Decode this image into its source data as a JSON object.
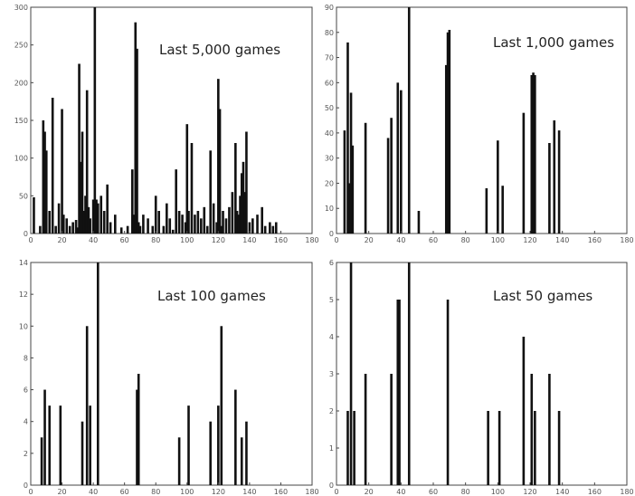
{
  "chart_data": [
    {
      "type": "bar",
      "title": "Last 5,000 games",
      "xlim": [
        0,
        180
      ],
      "ylim": [
        0,
        300
      ],
      "xticks": [
        0,
        20,
        40,
        60,
        80,
        100,
        120,
        140,
        160,
        180
      ],
      "yticks": [
        0,
        50,
        100,
        150,
        200,
        250,
        300
      ],
      "grid": false,
      "x": [
        2,
        6,
        8,
        9,
        10,
        12,
        14,
        16,
        18,
        20,
        21,
        23,
        25,
        27,
        29,
        30,
        31,
        32,
        33,
        34,
        35,
        36,
        37,
        38,
        40,
        41,
        42,
        43,
        45,
        47,
        49,
        51,
        54,
        58,
        62,
        65,
        66,
        67,
        68,
        69,
        70,
        72,
        75,
        78,
        80,
        82,
        85,
        87,
        89,
        91,
        93,
        95,
        97,
        99,
        100,
        101,
        103,
        105,
        107,
        109,
        111,
        113,
        115,
        117,
        119,
        120,
        121,
        122,
        123,
        125,
        127,
        129,
        131,
        132,
        133,
        134,
        135,
        136,
        137,
        138,
        140,
        142,
        145,
        148,
        150,
        153,
        155,
        157
      ],
      "values": [
        48,
        10,
        150,
        135,
        110,
        30,
        180,
        10,
        40,
        165,
        25,
        20,
        10,
        15,
        18,
        8,
        225,
        95,
        135,
        30,
        50,
        190,
        35,
        20,
        45,
        300,
        45,
        40,
        50,
        30,
        65,
        15,
        25,
        8,
        10,
        85,
        25,
        280,
        245,
        15,
        10,
        25,
        20,
        10,
        50,
        30,
        10,
        40,
        20,
        5,
        85,
        30,
        25,
        15,
        145,
        30,
        120,
        25,
        30,
        20,
        35,
        10,
        110,
        40,
        15,
        205,
        165,
        10,
        30,
        20,
        35,
        55,
        120,
        30,
        25,
        50,
        80,
        95,
        55,
        135,
        15,
        20,
        25,
        35,
        10,
        15,
        10,
        15
      ]
    },
    {
      "type": "bar",
      "title": "Last 1,000 games",
      "xlim": [
        0,
        180
      ],
      "ylim": [
        0,
        90
      ],
      "xticks": [
        0,
        20,
        40,
        60,
        80,
        100,
        120,
        140,
        160,
        180
      ],
      "yticks": [
        0,
        10,
        20,
        30,
        40,
        50,
        60,
        70,
        80,
        90
      ],
      "grid": false,
      "x": [
        5,
        7,
        8,
        9,
        10,
        18,
        32,
        34,
        38,
        40,
        45,
        51,
        68,
        69,
        70,
        93,
        100,
        103,
        116,
        121,
        122,
        123,
        132,
        135,
        138
      ],
      "values": [
        41,
        76,
        20,
        56,
        35,
        44,
        38,
        46,
        60,
        57,
        90,
        9,
        67,
        80,
        81,
        18,
        37,
        19,
        48,
        63,
        64,
        63,
        36,
        45,
        41
      ]
    },
    {
      "type": "bar",
      "title": "Last 100 games",
      "xlim": [
        0,
        180
      ],
      "ylim": [
        0,
        14
      ],
      "xticks": [
        0,
        20,
        40,
        60,
        80,
        100,
        120,
        140,
        160,
        180
      ],
      "yticks": [
        0,
        2,
        4,
        6,
        8,
        10,
        12,
        14
      ],
      "grid": false,
      "x": [
        7,
        9,
        12,
        19,
        33,
        36,
        38,
        43,
        68,
        69,
        95,
        101,
        115,
        120,
        122,
        131,
        135,
        138
      ],
      "values": [
        3,
        6,
        5,
        5,
        4,
        10,
        5,
        14,
        6,
        7,
        3,
        5,
        4,
        5,
        10,
        6,
        3,
        4
      ]
    },
    {
      "type": "bar",
      "title": "Last 50 games",
      "xlim": [
        0,
        180
      ],
      "ylim": [
        0,
        6
      ],
      "xticks": [
        0,
        20,
        40,
        60,
        80,
        100,
        120,
        140,
        160,
        180
      ],
      "yticks": [
        0,
        1,
        2,
        3,
        4,
        5,
        6
      ],
      "grid": false,
      "x": [
        7,
        9,
        11,
        18,
        34,
        38,
        39,
        45,
        69,
        94,
        101,
        116,
        121,
        123,
        132,
        138
      ],
      "values": [
        2,
        6,
        2,
        3,
        3,
        5,
        5,
        6,
        5,
        2,
        2,
        4,
        3,
        2,
        3,
        2
      ]
    }
  ]
}
